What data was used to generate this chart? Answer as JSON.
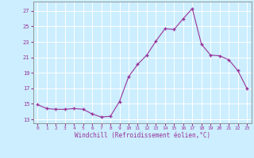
{
  "x": [
    0,
    1,
    2,
    3,
    4,
    5,
    6,
    7,
    8,
    9,
    10,
    11,
    12,
    13,
    14,
    15,
    16,
    17,
    18,
    19,
    20,
    21,
    22,
    23
  ],
  "y": [
    14.9,
    14.4,
    14.3,
    14.3,
    14.4,
    14.3,
    13.7,
    13.3,
    13.4,
    15.3,
    18.5,
    20.1,
    21.3,
    23.1,
    24.7,
    24.6,
    26.0,
    27.3,
    22.7,
    21.3,
    21.2,
    20.7,
    19.3,
    17.0
  ],
  "xlabel": "Windchill (Refroidissement éolien,°C)",
  "ylim_min": 12.5,
  "ylim_max": 28.2,
  "xlim_min": -0.5,
  "xlim_max": 23.5,
  "yticks": [
    13,
    15,
    17,
    19,
    21,
    23,
    25,
    27
  ],
  "xticks": [
    0,
    1,
    2,
    3,
    4,
    5,
    6,
    7,
    8,
    9,
    10,
    11,
    12,
    13,
    14,
    15,
    16,
    17,
    18,
    19,
    20,
    21,
    22,
    23
  ],
  "line_color": "#993399",
  "marker_color": "#993399",
  "bg_color": "#cceeff",
  "grid_color": "#aaddcc",
  "text_color": "#993399"
}
